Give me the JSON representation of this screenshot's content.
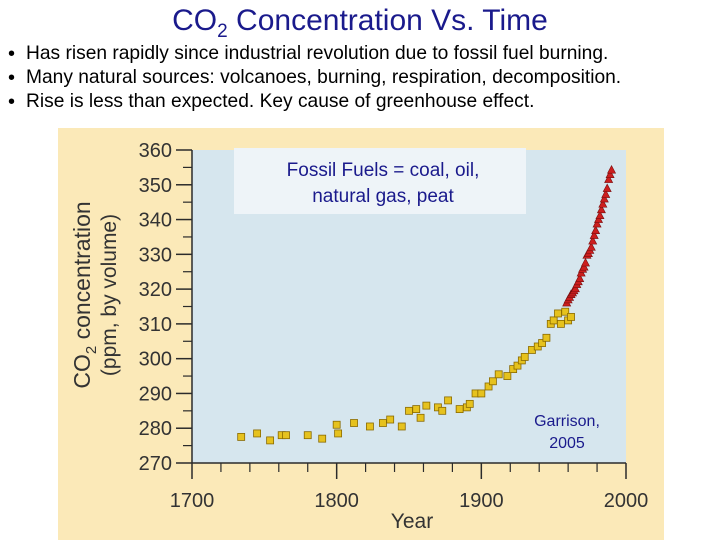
{
  "slide": {
    "title_main": "CO",
    "title_sub": "2",
    "title_rest": " Concentration Vs. Time",
    "bullets": [
      "Has risen rapidly since industrial revolution due to fossil fuel burning.",
      "Many natural sources: volcanoes, burning, respiration, decomposition.",
      "Rise is less  than expected. Key cause of greenhouse effect."
    ]
  },
  "annotations": {
    "fossil_line1": "Fossil Fuels = coal, oil,",
    "fossil_line2": "natural gas, peat",
    "source_line1": "Garrison,",
    "source_line2": "2005"
  },
  "colors": {
    "title": "#1a1a8c",
    "panel": "#fbe9b8",
    "plot_bg": "#d6e6ee",
    "ice_core_marker": "#e6c21e",
    "direct_marker": "#cc1e1e"
  },
  "chart_data": {
    "type": "scatter",
    "xlabel": "Year",
    "ylabel_line1": "CO",
    "ylabel_sub": "2",
    "ylabel_line1_rest": " concentration",
    "ylabel_line2": "(ppm, by volume)",
    "xlim": [
      1700,
      2000
    ],
    "ylim": [
      270,
      360
    ],
    "x_ticks": [
      1700,
      1800,
      1900,
      2000
    ],
    "y_ticks": [
      270,
      280,
      290,
      300,
      310,
      320,
      330,
      340,
      350,
      360
    ],
    "series": [
      {
        "marker": "square",
        "color": "#e6c21e",
        "points": [
          [
            1734,
            277.5
          ],
          [
            1745,
            278.5
          ],
          [
            1754,
            276.5
          ],
          [
            1762,
            278
          ],
          [
            1765,
            278
          ],
          [
            1780,
            278
          ],
          [
            1790,
            277
          ],
          [
            1800,
            281
          ],
          [
            1801,
            278.5
          ],
          [
            1812,
            281.5
          ],
          [
            1823,
            280.5
          ],
          [
            1832,
            281.5
          ],
          [
            1837,
            282.5
          ],
          [
            1845,
            280.5
          ],
          [
            1850,
            285
          ],
          [
            1855,
            285.5
          ],
          [
            1858,
            283
          ],
          [
            1862,
            286.5
          ],
          [
            1870,
            286
          ],
          [
            1873,
            285
          ],
          [
            1877,
            288
          ],
          [
            1885,
            285.5
          ],
          [
            1890,
            286
          ],
          [
            1892,
            287
          ],
          [
            1896,
            290
          ],
          [
            1900,
            290
          ],
          [
            1905,
            292
          ],
          [
            1908,
            293.5
          ],
          [
            1912,
            295.5
          ],
          [
            1918,
            295
          ],
          [
            1922,
            297
          ],
          [
            1925,
            298
          ],
          [
            1928,
            299.5
          ],
          [
            1930,
            300.5
          ],
          [
            1935,
            302.5
          ],
          [
            1939,
            303.5
          ],
          [
            1942,
            304.5
          ],
          [
            1945,
            306
          ],
          [
            1948,
            310
          ],
          [
            1950,
            311
          ],
          [
            1953,
            313
          ],
          [
            1955,
            310
          ],
          [
            1958,
            313.5
          ],
          [
            1960,
            311
          ],
          [
            1962,
            312
          ]
        ]
      },
      {
        "marker": "triangle",
        "color": "#cc1e1e",
        "points": [
          [
            1959,
            316
          ],
          [
            1960,
            316.9
          ],
          [
            1961,
            317.6
          ],
          [
            1962,
            318.4
          ],
          [
            1963,
            318.9
          ],
          [
            1964,
            319.5
          ],
          [
            1965,
            320.1
          ],
          [
            1966,
            321.3
          ],
          [
            1967,
            322.1
          ],
          [
            1968,
            323
          ],
          [
            1969,
            324.6
          ],
          [
            1970,
            325.7
          ],
          [
            1971,
            326.3
          ],
          [
            1972,
            327.5
          ],
          [
            1973,
            329.7
          ],
          [
            1974,
            330.2
          ],
          [
            1975,
            331.1
          ],
          [
            1976,
            332
          ],
          [
            1977,
            333.8
          ],
          [
            1978,
            335.4
          ],
          [
            1979,
            336.8
          ],
          [
            1980,
            338.7
          ],
          [
            1981,
            340
          ],
          [
            1982,
            341.1
          ],
          [
            1983,
            342.8
          ],
          [
            1984,
            344.4
          ],
          [
            1985,
            345.9
          ],
          [
            1986,
            347.2
          ],
          [
            1987,
            348.9
          ],
          [
            1988,
            351.5
          ],
          [
            1989,
            352.9
          ],
          [
            1990,
            354.2
          ]
        ]
      }
    ]
  }
}
